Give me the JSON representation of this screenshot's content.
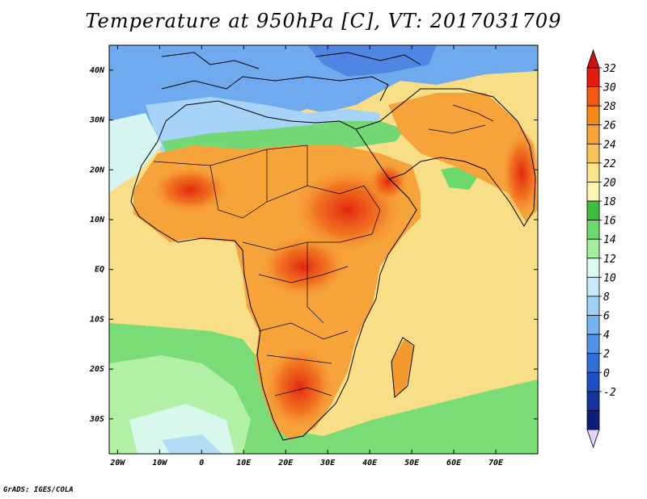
{
  "map": {
    "title": "Temperature at 950hPa [C], VT: 2017031709",
    "footer": "GrADS: IGES/COLA",
    "lon_labels": [
      "20W",
      "10W",
      "0",
      "10E",
      "20E",
      "30E",
      "40E",
      "50E",
      "60E",
      "70E"
    ],
    "lon_values": [
      -20,
      -10,
      0,
      10,
      20,
      30,
      40,
      50,
      60,
      70
    ],
    "lat_labels": [
      "40N",
      "30N",
      "20N",
      "10N",
      "EQ",
      "10S",
      "20S",
      "30S"
    ],
    "lat_values": [
      40,
      30,
      20,
      10,
      0,
      -10,
      -20,
      -30
    ],
    "extent": {
      "lon": [
        -22,
        80
      ],
      "lat": [
        -37,
        45
      ]
    }
  },
  "colorbar": {
    "labels": [
      "32",
      "30",
      "28",
      "26",
      "24",
      "22",
      "20",
      "18",
      "16",
      "14",
      "12",
      "10",
      "8",
      "6",
      "4",
      "2",
      "0",
      "-2"
    ],
    "colors": [
      "#e51a0a",
      "#f25a10",
      "#f68a18",
      "#f7a437",
      "#f8c45a",
      "#f9e38e",
      "#fdf5b6",
      "#3fbf3f",
      "#6bd96b",
      "#a6ee9e",
      "#dcfbef",
      "#c5e9fa",
      "#9fd0f6",
      "#77b3f0",
      "#4f92e6",
      "#2f6fd9",
      "#1e4fc4",
      "#13339f",
      "#0d1f7a"
    ],
    "over_color": "#cc1212",
    "under_color": "#ddd4f7"
  },
  "chart_data": {
    "type": "heatmap",
    "title": "Temperature at 950hPa [C], VT: 2017031709",
    "xlabel": "",
    "ylabel": "",
    "x_ticks": [
      "20W",
      "10W",
      "0",
      "10E",
      "20E",
      "30E",
      "40E",
      "50E",
      "60E",
      "70E"
    ],
    "y_ticks": [
      "40N",
      "30N",
      "20N",
      "10N",
      "EQ",
      "10S",
      "20S",
      "30S"
    ],
    "xlim": [
      -22,
      80
    ],
    "ylim": [
      -37,
      45
    ],
    "colorbar_range": [
      -2,
      32
    ],
    "colorbar_step": 2
  }
}
